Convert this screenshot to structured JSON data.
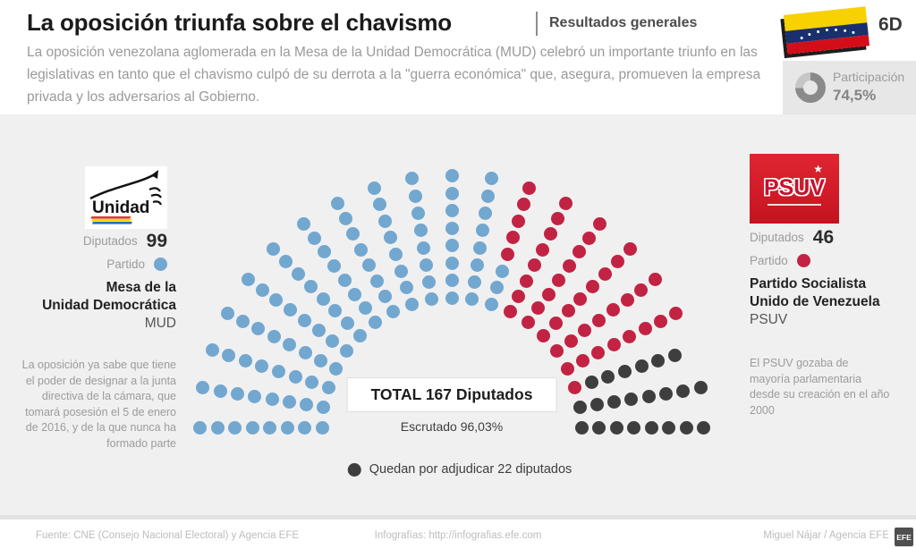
{
  "header": {
    "title": "La oposición triunfa sobre el chavismo",
    "kicker": "Resultados generales",
    "subtitle": "La oposición venezolana aglomerada en la Mesa de la Unidad Democrática (MUD) celebró un importante triunfo en las legislativas en tanto que el chavismo culpó de su derrota a la \"guerra económica\" que, asegura, promueven la empresa privada y los adversarios al Gobierno.",
    "date_badge": "6D",
    "participation_label": "Participación",
    "participation_value": "74,5%"
  },
  "left_panel": {
    "logo_text": "Unidad",
    "diputados_label": "Diputados",
    "diputados_value": "99",
    "partido_label": "Partido",
    "name_line1": "Mesa de la",
    "name_line2": "Unidad Democrática",
    "abbr": "MUD",
    "note": "La oposición ya sabe que tiene el poder de designar a la junta directiva de la cámara, que tomará posesión el 5 de enero de 2016, y de la que nunca ha formado parte"
  },
  "right_panel": {
    "logo_text": "PSUV",
    "logo_star": "★",
    "diputados_label": "Diputados",
    "diputados_value": "46",
    "partido_label": "Partido",
    "name_line1": "Partido Socialista",
    "name_line2": "Unido de Venezuela",
    "abbr": "PSUV",
    "note": "El PSUV gozaba de mayoría parlamentaria desde su creación en el año 2000"
  },
  "chart": {
    "total_label": "TOTAL 167 Diputados",
    "escrutado_label": "Escrutado 96,03%",
    "pending_legend": "Quedan por adjudicar 22 diputados"
  },
  "chart_data": {
    "type": "parliament-hemicycle",
    "title": "TOTAL 167 Diputados",
    "total_seats": 167,
    "escrutado_pct": "96,03%",
    "participacion_pct": "74,5%",
    "pending_seats": 22,
    "series": [
      {
        "name": "MUD",
        "seats": 99,
        "color": "#72a7d0"
      },
      {
        "name": "PSUV",
        "seats": 46,
        "color": "#c22343"
      },
      {
        "name": "Por adjudicar",
        "seats": 22,
        "color": "#3e3e3e"
      }
    ],
    "layout": {
      "spokes": 21,
      "seats_per_spoke": 8,
      "skip_index": 151
    }
  },
  "footer": {
    "source": "Fuente: CNE (Consejo Nacional Electoral) y Agencia EFE",
    "infografia": "Infografías: http://infografias.efe.com",
    "credit": "Miguel Nájar / Agencia EFE",
    "logo": "EFE"
  }
}
